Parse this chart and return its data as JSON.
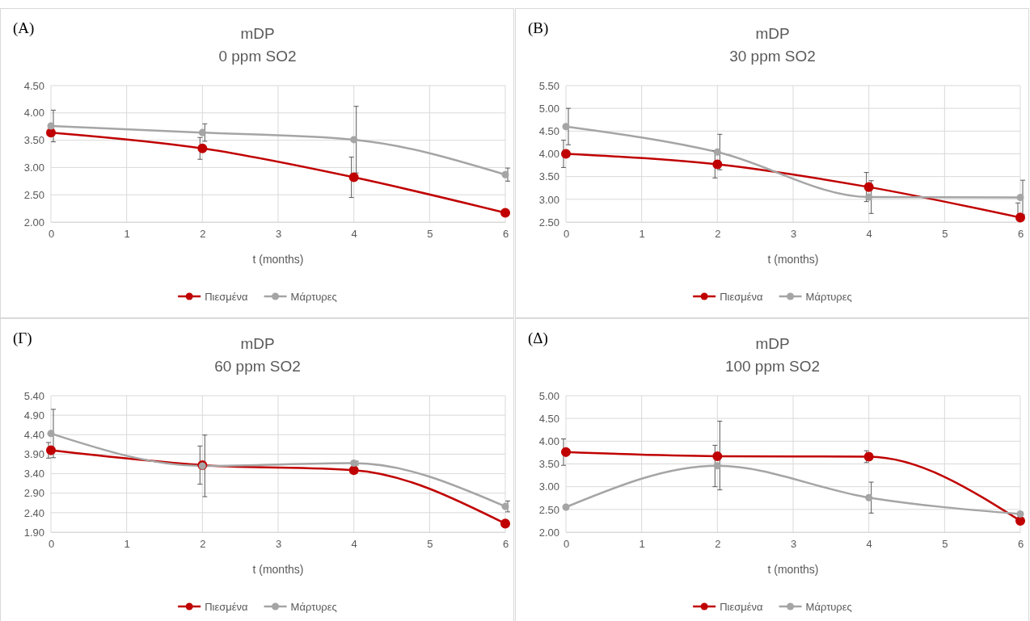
{
  "chart_data": [
    {
      "type": "line",
      "title": "mDP",
      "subtitle": "0 ppm SO2",
      "annotations": [
        "(A)"
      ],
      "xlabel": "t (months)",
      "x": [
        0,
        2,
        4,
        6
      ],
      "xlim": [
        0,
        6
      ],
      "xticks": [
        0,
        1,
        2,
        3,
        4,
        5,
        6
      ],
      "ylim": [
        2,
        4.5
      ],
      "yticks": [
        {
          "value": 2,
          "label": "2.00"
        },
        {
          "value": 2.5,
          "label": "2.50"
        },
        {
          "value": 3,
          "label": "3.00"
        },
        {
          "value": 3.5,
          "label": "3.50"
        },
        {
          "value": 4,
          "label": "4.00"
        },
        {
          "value": 4.5,
          "label": "4.50"
        }
      ],
      "grid": true,
      "legend": "bottom",
      "marker": "circle",
      "line_style": "solid",
      "series": [
        {
          "name": "Πιεσμένα",
          "color": "#c00000",
          "values": [
            3.64,
            3.35,
            2.82,
            2.17
          ],
          "errors": [
            null,
            0.2,
            0.37,
            null
          ]
        },
        {
          "name": "Μάρτυρες",
          "color": "#a5a5a5",
          "values": [
            3.76,
            3.64,
            3.51,
            2.87
          ],
          "errors": [
            0.29,
            0.16,
            0.61,
            0.12
          ]
        }
      ]
    },
    {
      "type": "line",
      "title": "mDP",
      "subtitle": "30 ppm SO2",
      "annotations": [
        "(B)"
      ],
      "xlabel": "t (months)",
      "x": [
        0,
        2,
        4,
        6
      ],
      "xlim": [
        0,
        6
      ],
      "xticks": [
        0,
        1,
        2,
        3,
        4,
        5,
        6
      ],
      "ylim": [
        2.5,
        5.5
      ],
      "yticks": [
        {
          "value": 2.5,
          "label": "2.50"
        },
        {
          "value": 3,
          "label": "3.00"
        },
        {
          "value": 3.5,
          "label": "3.50"
        },
        {
          "value": 4,
          "label": "4.00"
        },
        {
          "value": 4.5,
          "label": "4.50"
        },
        {
          "value": 5,
          "label": "5.00"
        },
        {
          "value": 5.5,
          "label": "5.50"
        }
      ],
      "grid": true,
      "legend": "bottom",
      "marker": "circle",
      "line_style": "solid",
      "series": [
        {
          "name": "Πιεσμένα",
          "color": "#c00000",
          "values": [
            4.0,
            3.77,
            3.27,
            2.6
          ],
          "errors": [
            0.3,
            0.3,
            0.32,
            [
              2.6,
              2.92
            ]
          ]
        },
        {
          "name": "Μάρτυρες",
          "color": "#a5a5a5",
          "values": [
            4.6,
            4.04,
            3.05,
            3.04
          ],
          "errors": [
            0.4,
            0.39,
            0.36,
            0.38
          ]
        }
      ]
    },
    {
      "type": "line",
      "title": "mDP",
      "subtitle": "60 ppm SO2",
      "annotations": [
        "(Γ)"
      ],
      "xlabel": "t (months)",
      "x": [
        0,
        2,
        4,
        6
      ],
      "xlim": [
        0,
        6
      ],
      "xticks": [
        0,
        1,
        2,
        3,
        4,
        5,
        6
      ],
      "ylim": [
        1.9,
        5.4
      ],
      "yticks": [
        {
          "value": 1.9,
          "label": "1.90"
        },
        {
          "value": 2.4,
          "label": "2.40"
        },
        {
          "value": 2.9,
          "label": "2.90"
        },
        {
          "value": 3.4,
          "label": "3.40"
        },
        {
          "value": 3.9,
          "label": "3.90"
        },
        {
          "value": 4.4,
          "label": "4.40"
        },
        {
          "value": 4.9,
          "label": "4.90"
        },
        {
          "value": 5.4,
          "label": "5.40"
        }
      ],
      "grid": true,
      "legend": "bottom",
      "marker": "circle",
      "line_style": "solid",
      "series": [
        {
          "name": "Πιεσμένα",
          "color": "#c00000",
          "values": [
            4.0,
            3.62,
            3.49,
            2.12
          ],
          "errors": [
            0.2,
            0.49,
            null,
            null
          ]
        },
        {
          "name": "Μάρτυρες",
          "color": "#a5a5a5",
          "values": [
            4.43,
            3.6,
            3.67,
            2.56
          ],
          "errors": [
            0.62,
            0.79,
            0.05,
            0.14
          ]
        }
      ]
    },
    {
      "type": "line",
      "title": "mDP",
      "subtitle": "100 ppm SO2",
      "annotations": [
        "(Δ)"
      ],
      "xlabel": "t (months)",
      "x": [
        0,
        2,
        4,
        6
      ],
      "xlim": [
        0,
        6
      ],
      "xticks": [
        0,
        1,
        2,
        3,
        4,
        5,
        6
      ],
      "ylim": [
        2,
        5
      ],
      "yticks": [
        {
          "value": 2,
          "label": "2.00"
        },
        {
          "value": 2.5,
          "label": "2.50"
        },
        {
          "value": 3,
          "label": "3.00"
        },
        {
          "value": 3.5,
          "label": "3.50"
        },
        {
          "value": 4,
          "label": "4.00"
        },
        {
          "value": 4.5,
          "label": "4.50"
        },
        {
          "value": 5,
          "label": "5.00"
        }
      ],
      "grid": true,
      "legend": "bottom",
      "marker": "circle",
      "line_style": "solid",
      "series": [
        {
          "name": "Πιεσμένα",
          "color": "#c00000",
          "values": [
            3.76,
            3.67,
            3.66,
            2.25
          ],
          "errors": [
            0.29,
            [
              3.0,
              3.91
            ],
            0.13,
            null
          ]
        },
        {
          "name": "Μάρτυρες",
          "color": "#a5a5a5",
          "values": [
            2.55,
            3.46,
            2.76,
            2.4
          ],
          "errors": [
            null,
            [
              2.93,
              4.44
            ],
            0.34,
            null
          ]
        }
      ]
    }
  ]
}
